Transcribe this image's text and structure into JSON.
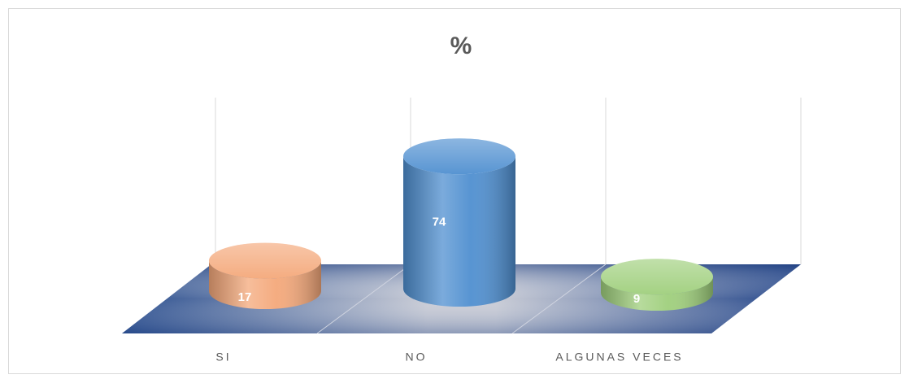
{
  "chart_data": {
    "type": "bar3d",
    "title": "%",
    "categories": [
      "SI",
      "NO",
      "ALGUNAS  VECES"
    ],
    "values": [
      17,
      74,
      9
    ],
    "colors": [
      "#f4a87a",
      "#4f8fd0",
      "#9fcf7c"
    ]
  }
}
